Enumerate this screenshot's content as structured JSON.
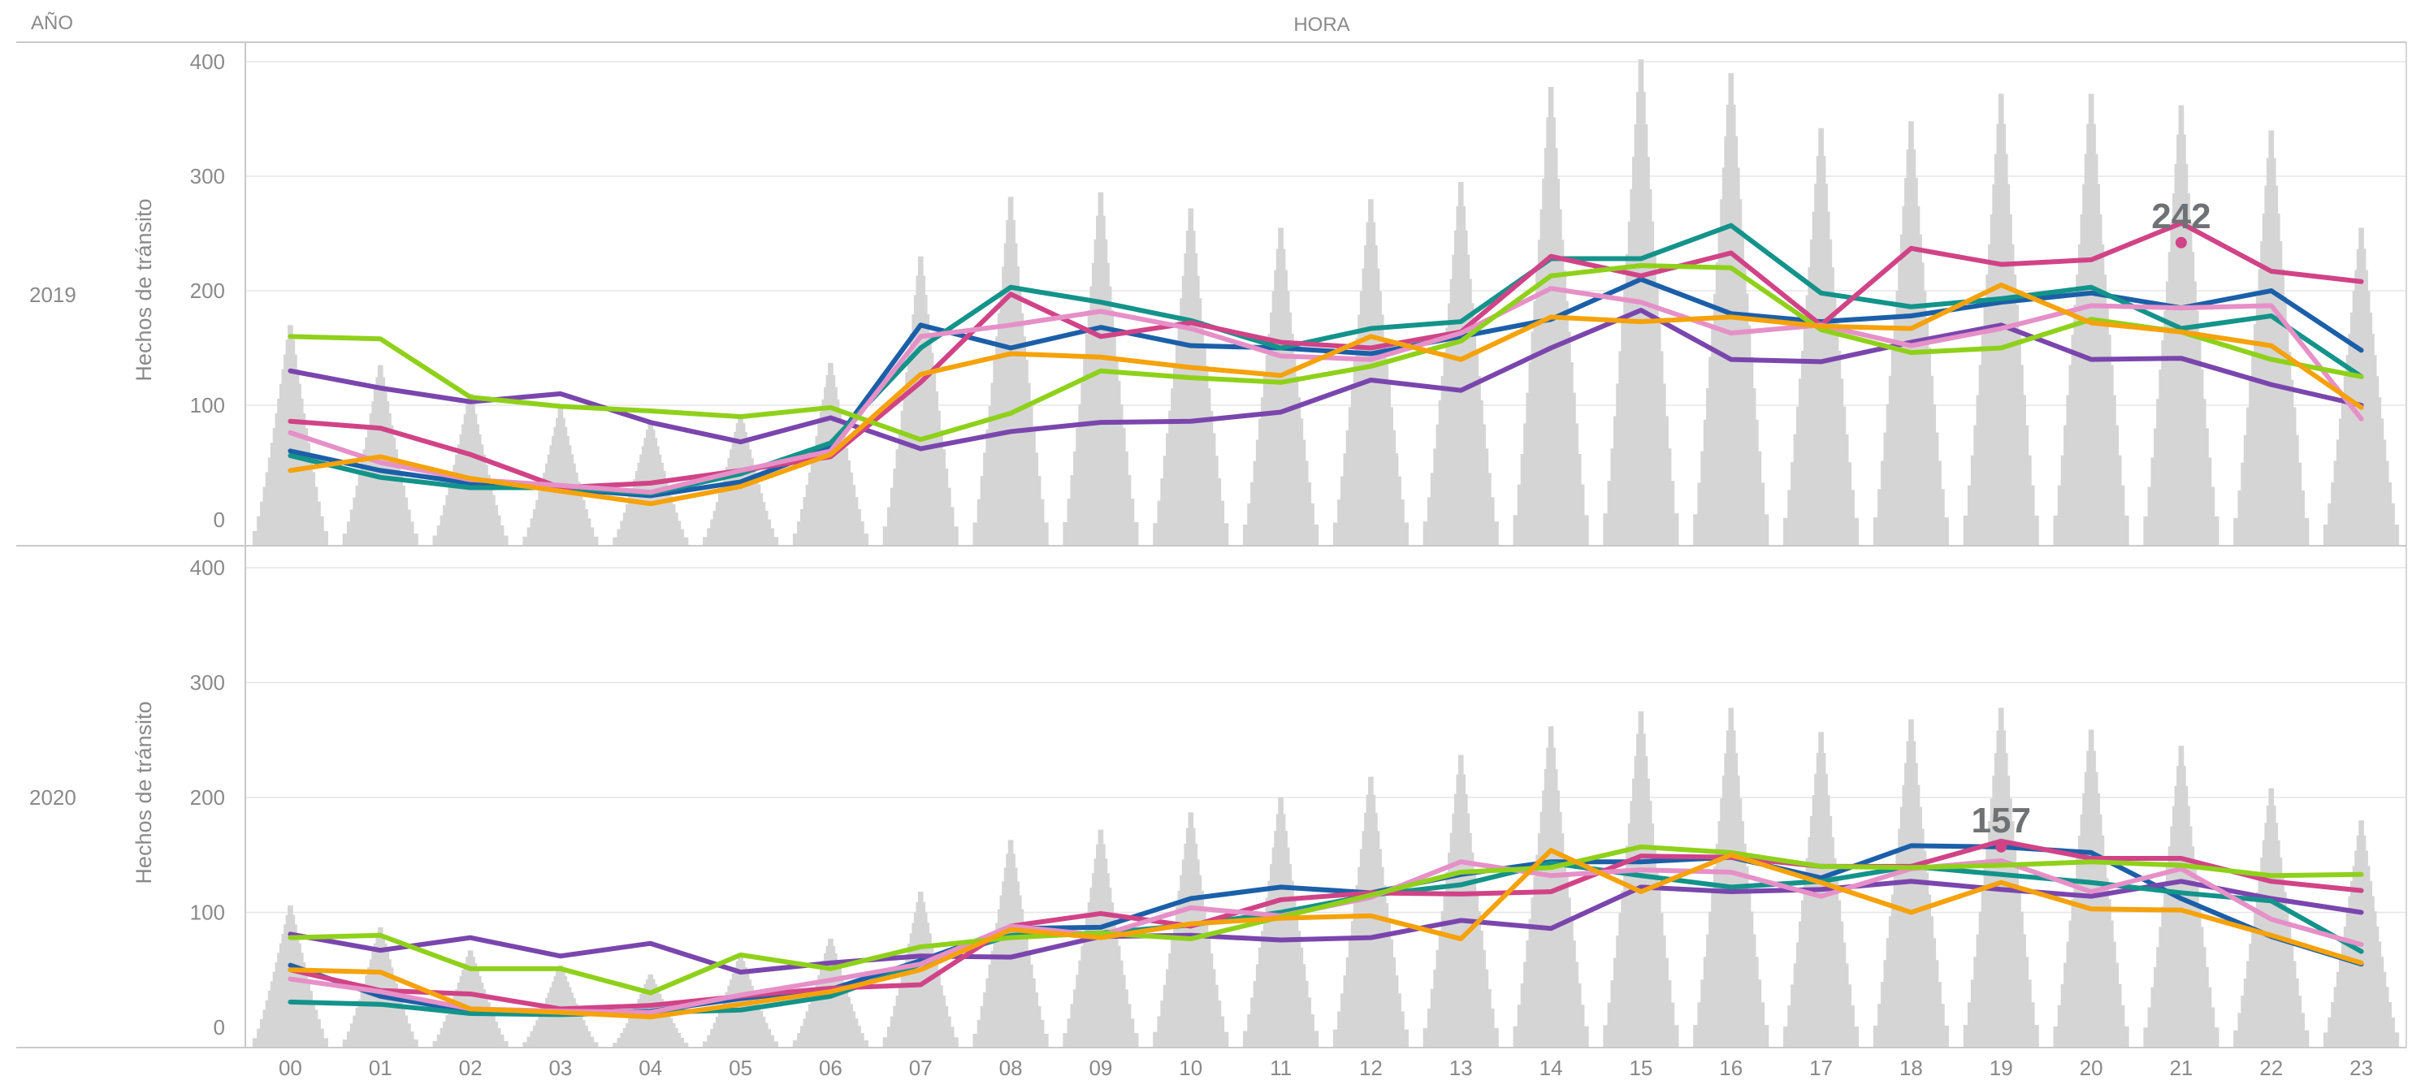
{
  "header": {
    "row_label": "AÑO",
    "column_label": "HORA",
    "y_axis_title": "Hechos de tránsito"
  },
  "colors": {
    "hist_bar": "#d5d5d5",
    "grid": "#e6e6e6",
    "border": "#c9c9c9",
    "text": "#8a8a8a",
    "annotation": "#6f7275"
  },
  "chart_data": {
    "type": "line",
    "description_note": "Small-multiple panels by year; per hour a grey frequency histogram plus one line per series",
    "x_label": "HORA",
    "y_label": "Hechos de tránsito",
    "ylim": [
      0,
      400
    ],
    "y_ticks": [
      "0",
      "100",
      "200",
      "300",
      "400"
    ],
    "hours": [
      "00",
      "01",
      "02",
      "03",
      "04",
      "05",
      "06",
      "07",
      "08",
      "09",
      "10",
      "11",
      "12",
      "13",
      "14",
      "15",
      "16",
      "17",
      "18",
      "19",
      "20",
      "21",
      "22",
      "23"
    ],
    "series_colors": [
      "#1b5fa8",
      "#7a46ad",
      "#13938a",
      "#d14387",
      "#e690c8",
      "#8fd11a",
      "#f5a20b"
    ],
    "panels": [
      {
        "year": "2019",
        "hist_max": [
          170,
          135,
          110,
          97,
          86,
          92,
          137,
          230,
          282,
          286,
          272,
          255,
          280,
          295,
          378,
          402,
          390,
          342,
          348,
          372,
          372,
          362,
          340,
          255
        ],
        "series": [
          {
            "values": [
              60,
              43,
              32,
              27,
              21,
              33,
              63,
              170,
              150,
              168,
              152,
              150,
              145,
              160,
              175,
              210,
              180,
              173,
              178,
              190,
              198,
              185,
              200,
              148
            ]
          },
          {
            "values": [
              130,
              115,
              103,
              110,
              85,
              68,
              89,
              62,
              77,
              85,
              86,
              94,
              122,
              113,
              150,
              183,
              140,
              138,
              155,
              170,
              140,
              141,
              118,
              100
            ]
          },
          {
            "values": [
              56,
              37,
              28,
              28,
              23,
              40,
              67,
              150,
              203,
              190,
              174,
              150,
              167,
              173,
              228,
              228,
              257,
              198,
              186,
              193,
              203,
              167,
              178,
              125
            ]
          },
          {
            "values": [
              86,
              80,
              57,
              28,
              32,
              43,
              55,
              120,
              197,
              160,
              172,
              155,
              150,
              164,
              230,
              213,
              233,
              170,
              237,
              223,
              227,
              259,
              217,
              208
            ]
          },
          {
            "values": [
              76,
              50,
              35,
              30,
              24,
              43,
              60,
              160,
              170,
              182,
              167,
              143,
              140,
              163,
              202,
              190,
              163,
              170,
              152,
              167,
              187,
              185,
              187,
              88
            ]
          },
          {
            "values": [
              160,
              158,
              107,
              99,
              95,
              90,
              98,
              70,
              93,
              130,
              124,
              120,
              134,
              156,
              213,
              222,
              220,
              166,
              146,
              150,
              175,
              164,
              140,
              125
            ]
          },
          {
            "values": [
              43,
              55,
              36,
              25,
              14,
              29,
              57,
              127,
              145,
              142,
              133,
              126,
              160,
              140,
              177,
              173,
              177,
              169,
              167,
              205,
              172,
              164,
              152,
              98
            ]
          }
        ],
        "peak_label": {
          "text": "242",
          "hour_index": 21
        }
      },
      {
        "year": "2020",
        "hist_max": [
          106,
          87,
          67,
          54,
          46,
          63,
          77,
          118,
          163,
          172,
          187,
          200,
          218,
          237,
          262,
          275,
          278,
          257,
          268,
          278,
          259,
          245,
          208,
          180
        ],
        "series": [
          {
            "values": [
              54,
              27,
              14,
              12,
              14,
              25,
              33,
              58,
              86,
              87,
              112,
              122,
              117,
              133,
              144,
              144,
              148,
              130,
              158,
              157,
              152,
              112,
              79,
              55
            ]
          },
          {
            "values": [
              81,
              67,
              78,
              62,
              73,
              48,
              56,
              62,
              61,
              79,
              80,
              76,
              78,
              93,
              86,
              122,
              118,
              120,
              127,
              120,
              114,
              127,
              112,
              100
            ]
          },
          {
            "values": [
              22,
              20,
              12,
              11,
              13,
              15,
              27,
              55,
              80,
              82,
              89,
              100,
              115,
              124,
              143,
              132,
              122,
              127,
              140,
              133,
              126,
              117,
              110,
              66
            ]
          },
          {
            "values": [
              50,
              32,
              29,
              16,
              19,
              27,
              34,
              37,
              88,
              99,
              88,
              111,
              117,
              116,
              118,
              149,
              148,
              140,
              140,
              162,
              147,
              147,
              127,
              119
            ]
          },
          {
            "values": [
              42,
              31,
              16,
              14,
              13,
              28,
              41,
              55,
              88,
              80,
              104,
              97,
              113,
              144,
              132,
              137,
              135,
              114,
              138,
              145,
              118,
              138,
              94,
              72
            ]
          },
          {
            "values": [
              78,
              80,
              51,
              51,
              30,
              63,
              51,
              70,
              78,
              82,
              77,
              96,
              115,
              135,
              139,
              157,
              152,
              140,
              139,
              141,
              144,
              141,
              132,
              133
            ]
          },
          {
            "values": [
              50,
              48,
              16,
              13,
              9,
              20,
              31,
              50,
              85,
              78,
              90,
              95,
              97,
              77,
              154,
              118,
              150,
              126,
              100,
              126,
              103,
              102,
              80,
              56
            ]
          }
        ],
        "peak_label": {
          "text": "157",
          "hour_index": 19
        }
      }
    ]
  }
}
